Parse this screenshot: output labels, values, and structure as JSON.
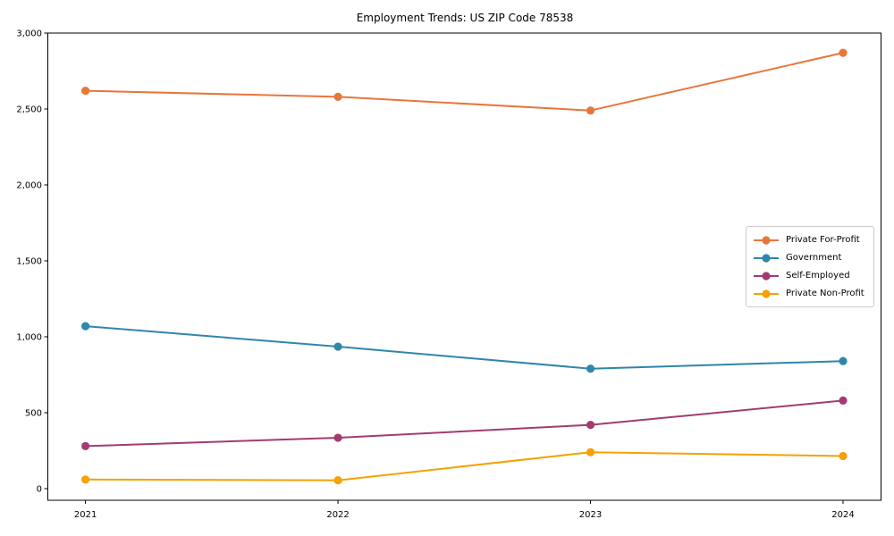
{
  "chart_data": {
    "type": "line",
    "title": "Employment Trends: US ZIP Code 78538",
    "x": [
      "2021",
      "2022",
      "2023",
      "2024"
    ],
    "series": [
      {
        "name": "Private For-Profit",
        "color": "#E8763B",
        "values": [
          2620,
          2580,
          2490,
          2870
        ]
      },
      {
        "name": "Government",
        "color": "#2E86AB",
        "values": [
          1070,
          935,
          790,
          840
        ]
      },
      {
        "name": "Self-Employed",
        "color": "#A23B72",
        "values": [
          280,
          335,
          420,
          580
        ]
      },
      {
        "name": "Private Non-Profit",
        "color": "#F5A103",
        "values": [
          60,
          55,
          240,
          215
        ]
      }
    ],
    "xlabel": "",
    "ylabel": "",
    "ylim": [
      -76,
      3000
    ],
    "yticks": [
      0,
      500,
      1000,
      1500,
      2000,
      2500,
      3000
    ],
    "ytick_labels": [
      "0",
      "500",
      "1,000",
      "1,500",
      "2,000",
      "2,500",
      "3,000"
    ],
    "grid": false,
    "legend_position": "center-right",
    "marker": "circle",
    "axis_color": "#000000",
    "background": "#ffffff",
    "legend_border_color": "#cccccc"
  }
}
